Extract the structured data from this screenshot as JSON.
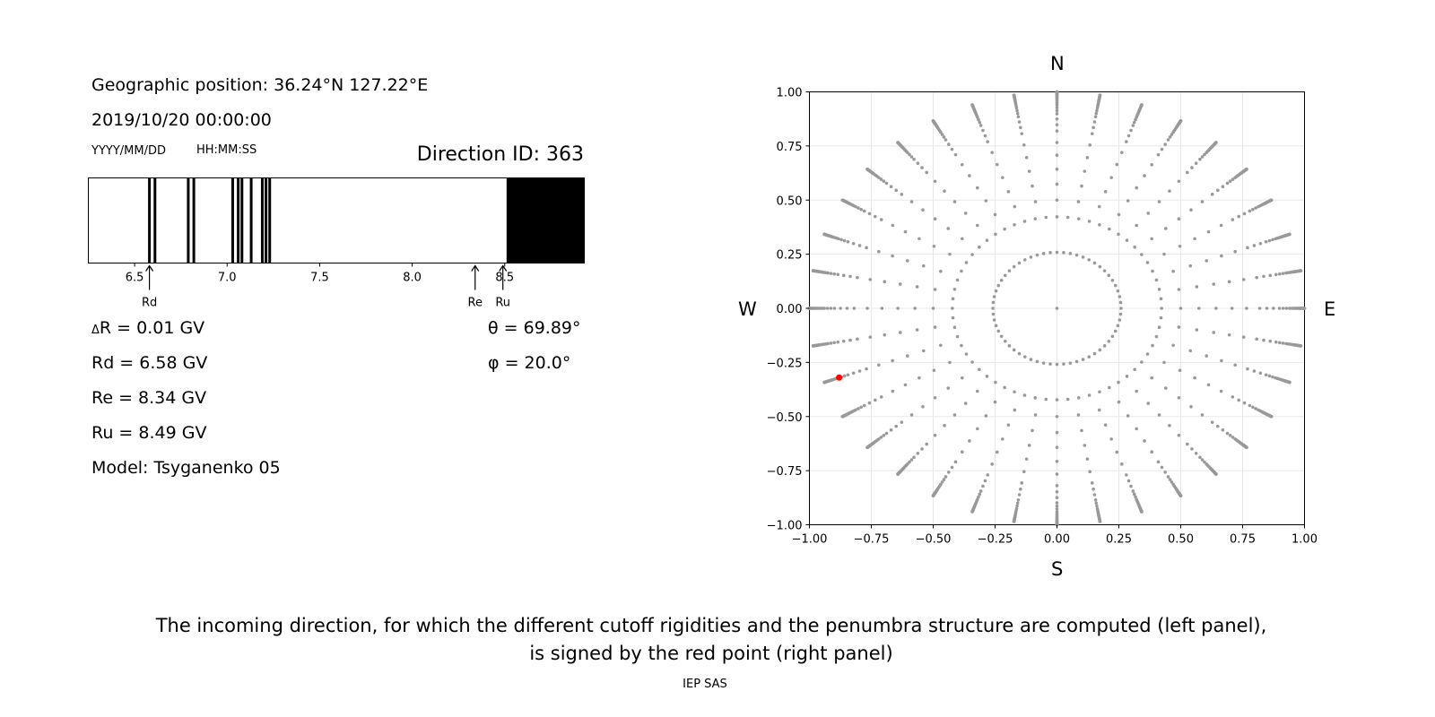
{
  "info": {
    "geo_position": "Geographic position: 36.24°N 127.22°E",
    "datetime": "2019/10/20 00:00:00",
    "date_format": "YYYY/MM/DD",
    "time_format": "HH:MM:SS",
    "direction_id": "Direction ID: 363",
    "delta_r": "R = 0.01 GV",
    "delta_symbol": "Δ",
    "rd": "Rd = 6.58 GV",
    "re": "Re = 8.34 GV",
    "ru": "Ru = 8.49 GV",
    "model": "Model: Tsyganenko 05",
    "theta": "θ = 69.89°",
    "phi": "φ = 20.0°"
  },
  "compass": {
    "north": "N",
    "south": "S",
    "west": "W",
    "east": "E"
  },
  "caption": {
    "line1": "The incoming direction, for which the different cutoff rigidities and the penumbra structure are computed (left panel),",
    "line2": "is signed by the red point (right panel)"
  },
  "footer": "IEP SAS",
  "colors": {
    "grid_point": "#999999",
    "selected_point": "#ff0000",
    "bar": "#000000"
  },
  "chart_data": [
    {
      "type": "penumbra-bar",
      "title": "Direction ID: 363",
      "xlim": [
        6.25,
        8.93
      ],
      "ticks": [
        6.5,
        7.0,
        7.5,
        8.0,
        8.5
      ],
      "tick_labels": [
        "6.5",
        "7.0",
        "7.5",
        "8.0",
        "8.5"
      ],
      "forbidden_lines": [
        6.58,
        6.61,
        6.79,
        6.82,
        7.03,
        7.06,
        7.08,
        7.13,
        7.19,
        7.21,
        7.23
      ],
      "forbidden_region": [
        8.51,
        8.93
      ],
      "markers": [
        {
          "label": "Rd",
          "value": 6.58
        },
        {
          "label": "Re",
          "value": 8.34
        },
        {
          "label": "Ru",
          "value": 8.49
        }
      ]
    },
    {
      "type": "scatter",
      "xlim": [
        -1.0,
        1.0
      ],
      "ylim": [
        -1.0,
        1.0
      ],
      "xticks": [
        -1.0,
        -0.75,
        -0.5,
        -0.25,
        0.0,
        0.25,
        0.5,
        0.75,
        1.0
      ],
      "xtick_labels": [
        "−1.00",
        "−0.75",
        "−0.50",
        "−0.25",
        "0.00",
        "0.25",
        "0.50",
        "0.75",
        "1.00"
      ],
      "yticks": [
        1.0,
        0.75,
        0.5,
        0.25,
        0.0,
        -0.25,
        -0.5,
        -0.75,
        -1.0
      ],
      "ytick_labels": [
        "1.00",
        "0.75",
        "0.50",
        "0.25",
        "0.00",
        "−0.25",
        "−0.50",
        "−0.75",
        "−1.00"
      ],
      "grid": true,
      "grid_structure": {
        "center_point": [
          0,
          0
        ],
        "zenith_deg_inner": [
          15,
          25
        ],
        "azimuth_step_deg_inner": 6,
        "zenith_deg_outer": [
          30,
          35,
          40,
          45,
          50,
          55,
          58,
          61,
          64,
          66,
          68,
          70,
          71.5,
          73,
          74.5,
          75.5,
          76.5,
          77.5,
          78.5,
          79.5,
          80.5,
          81.5,
          82.5,
          83.5,
          84.5,
          85.5,
          86.5,
          87.5,
          88.5,
          89.5,
          90
        ],
        "azimuth_step_deg_outer": 10
      },
      "selected_point": {
        "x": -0.88,
        "y": -0.32,
        "zenith_deg": 69.89,
        "azimuth_deg": 20.0
      }
    }
  ]
}
